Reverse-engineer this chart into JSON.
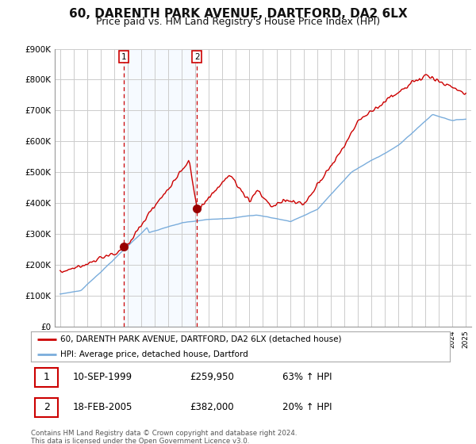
{
  "title": "60, DARENTH PARK AVENUE, DARTFORD, DA2 6LX",
  "subtitle": "Price paid vs. HM Land Registry's House Price Index (HPI)",
  "title_fontsize": 11,
  "subtitle_fontsize": 9,
  "ylim": [
    0,
    900000
  ],
  "yticks": [
    0,
    100000,
    200000,
    300000,
    400000,
    500000,
    600000,
    700000,
    800000,
    900000
  ],
  "ytick_labels": [
    "£0",
    "£100K",
    "£200K",
    "£300K",
    "£400K",
    "£500K",
    "£600K",
    "£700K",
    "£800K",
    "£900K"
  ],
  "background_color": "#ffffff",
  "plot_bg_color": "#ffffff",
  "grid_color": "#cccccc",
  "shade_color": "#ddeeff",
  "line1_color": "#cc0000",
  "line2_color": "#7aaddc",
  "marker_color": "#990000",
  "vline_color": "#cc0000",
  "transaction1": {
    "date": "10-SEP-1999",
    "price": 259950,
    "label": "1",
    "pct": "63% ↑ HPI"
  },
  "transaction2": {
    "date": "18-FEB-2005",
    "price": 382000,
    "label": "2",
    "pct": "20% ↑ HPI"
  },
  "legend_line1": "60, DARENTH PARK AVENUE, DARTFORD, DA2 6LX (detached house)",
  "legend_line2": "HPI: Average price, detached house, Dartford",
  "footer": "Contains HM Land Registry data © Crown copyright and database right 2024.\nThis data is licensed under the Open Government Licence v3.0.",
  "sale1_x": 1999.72,
  "sale1_y": 259950,
  "sale2_x": 2005.12,
  "sale2_y": 382000,
  "xlim_left": 1994.6,
  "xlim_right": 2025.4
}
